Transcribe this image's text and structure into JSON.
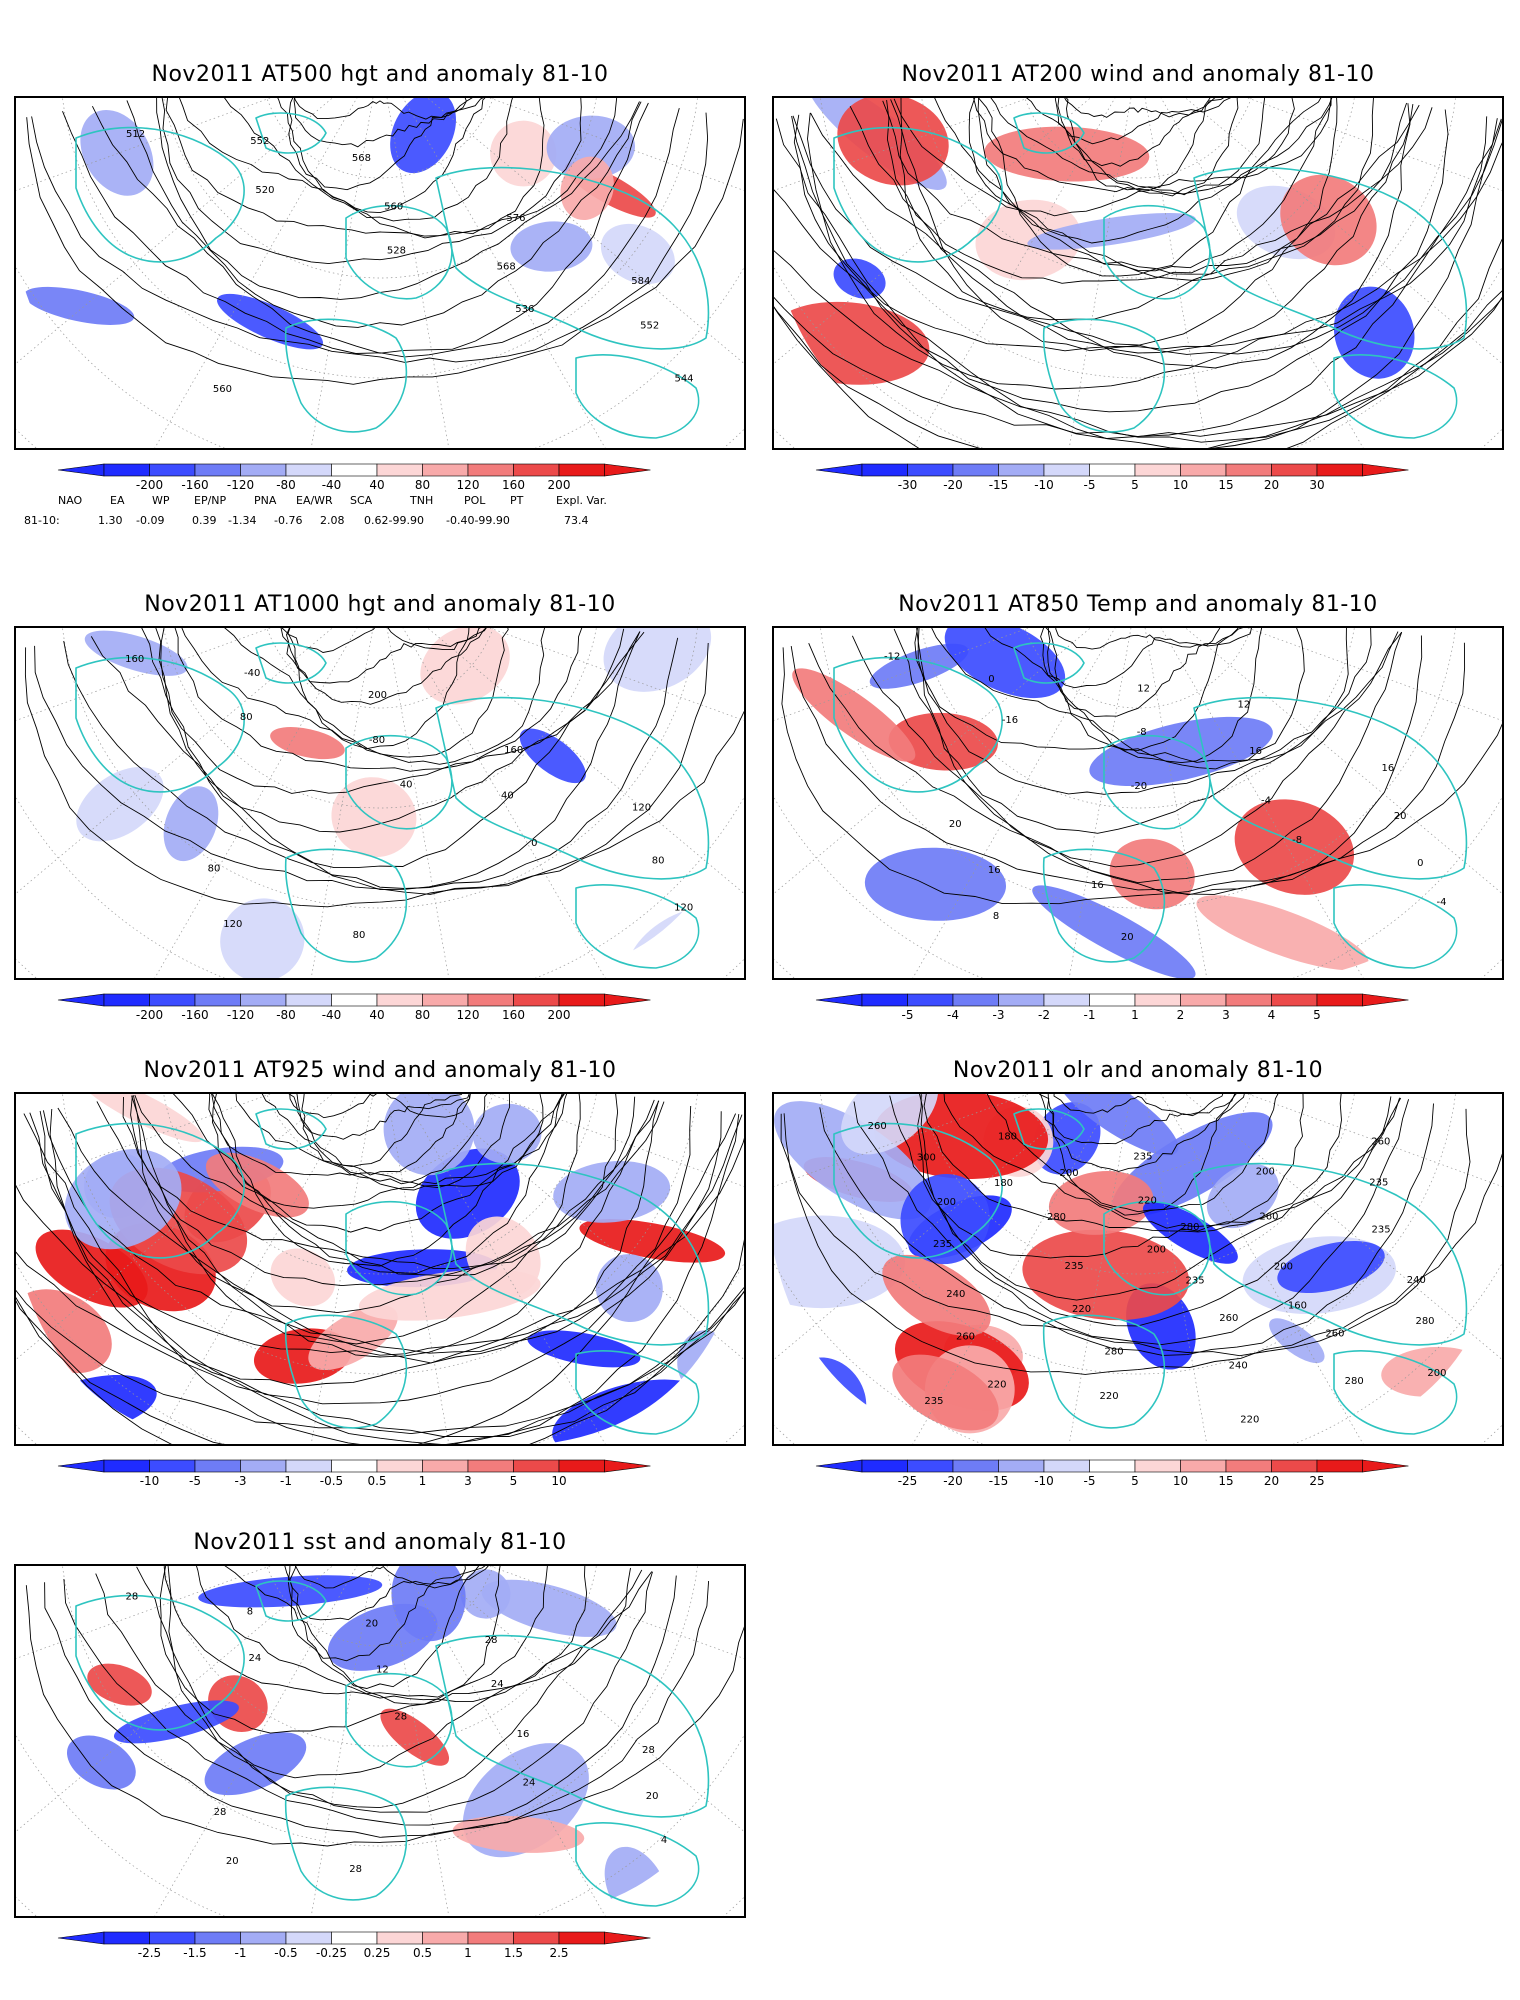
{
  "panels": [
    {
      "title": "Nov2011 AT500 hgt and anomaly 81-10",
      "colorbar": [
        "-200",
        "-160",
        "-120",
        "-80",
        "-40",
        "40",
        "80",
        "120",
        "160",
        "200"
      ],
      "contour_labels": [
        "512",
        "520",
        "528",
        "536",
        "544",
        "552",
        "560",
        "568",
        "552",
        "560",
        "568",
        "576",
        "584"
      ]
    },
    {
      "title": "Nov2011 AT200 wind and anomaly 81-10",
      "colorbar": [
        "-30",
        "-20",
        "-15",
        "-10",
        "-5",
        "5",
        "10",
        "15",
        "20",
        "30"
      ],
      "contour_labels": []
    },
    {
      "title": "Nov2011 AT1000 hgt and anomaly 81-10",
      "colorbar": [
        "-200",
        "-160",
        "-120",
        "-80",
        "-40",
        "40",
        "80",
        "120",
        "160",
        "200"
      ],
      "contour_labels": [
        "160",
        "80",
        "40",
        "0",
        "120",
        "-40",
        "-80",
        "40",
        "80",
        "120",
        "200",
        "160",
        "120",
        "80",
        "80"
      ]
    },
    {
      "title": "Nov2011 AT850 Temp and anomaly 81-10",
      "colorbar": [
        "-5",
        "-4",
        "-3",
        "-2",
        "-1",
        "1",
        "2",
        "3",
        "4",
        "5"
      ],
      "contour_labels": [
        "-12",
        "-16",
        "-20",
        "-8",
        "-4",
        "0",
        "-8",
        "-4",
        "0",
        "8",
        "12",
        "16",
        "20",
        "16",
        "20",
        "12",
        "16",
        "20",
        "16"
      ]
    },
    {
      "title": "Nov2011 AT925 wind and anomaly 81-10",
      "colorbar": [
        "-10",
        "-5",
        "-3",
        "-1",
        "-0.5",
        "0.5",
        "1",
        "3",
        "5",
        "10"
      ],
      "contour_labels": []
    },
    {
      "title": "Nov2011 olr and anomaly 81-10",
      "colorbar": [
        "-25",
        "-20",
        "-15",
        "-10",
        "-5",
        "5",
        "10",
        "15",
        "20",
        "25"
      ],
      "contour_labels": [
        "260",
        "180",
        "200",
        "160",
        "200",
        "180",
        "220",
        "200",
        "280",
        "220",
        "235",
        "260",
        "240",
        "260",
        "220",
        "200",
        "235",
        "240",
        "280",
        "220",
        "235",
        "235",
        "220",
        "240",
        "260",
        "200",
        "235",
        "260",
        "280",
        "300",
        "280",
        "235",
        "260",
        "235",
        "200",
        "280"
      ]
    },
    {
      "title": "Nov2011 sst and anomaly 81-10",
      "colorbar": [
        "-2.5",
        "-1.5",
        "-1",
        "-0.5",
        "-0.25",
        "0.25",
        "0.5",
        "1",
        "1.5",
        "2.5"
      ],
      "contour_labels": [
        "28",
        "24",
        "28",
        "24",
        "4",
        "8",
        "12",
        "16",
        "20",
        "20",
        "20",
        "24",
        "28",
        "28",
        "28",
        "28"
      ]
    }
  ],
  "teleconnections": {
    "headers": [
      "NAO",
      "EA",
      "WP",
      "EP/NP",
      "PNA",
      "EA/WR",
      "SCA",
      "TNH",
      "POL",
      "PT",
      "Expl. Var."
    ],
    "row_label": "81-10:",
    "values": [
      "1.30",
      "-0.09",
      "0.39",
      "-1.34",
      "-0.76",
      "2.08",
      "0.62-99.90",
      "-0.40-99.90",
      "73.4"
    ]
  },
  "colors": {
    "coastline": "#2ec4c0",
    "contour": "#000000",
    "blue_scale": [
      "#1f2bff",
      "#3c4cff",
      "#6e7cf6",
      "#a3acf5",
      "#d4d8fa"
    ],
    "red_scale": [
      "#fcd6d6",
      "#f8aaaa",
      "#f27c7c",
      "#ec4a4a",
      "#e81a1a"
    ]
  }
}
